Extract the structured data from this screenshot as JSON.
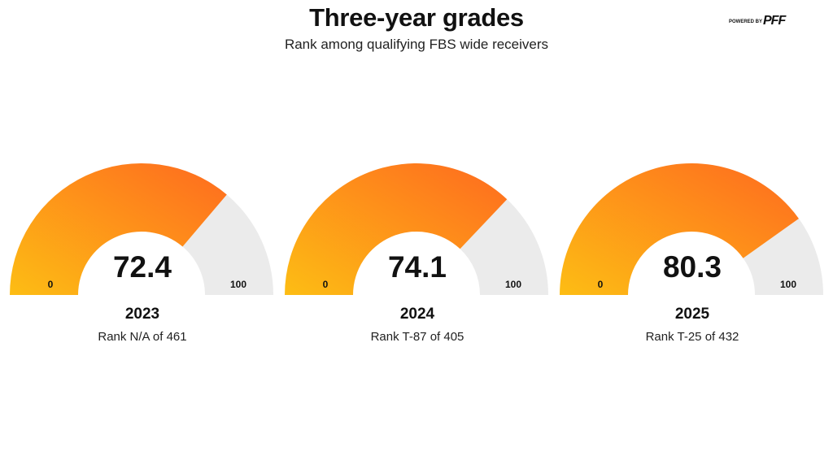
{
  "header": {
    "title": "Three-year grades",
    "subtitle": "Rank among qualifying FBS wide receivers"
  },
  "brand": {
    "powered_by": "POWERED BY",
    "logo_text": "PFF"
  },
  "colors": {
    "gradient_start": "#FDBD14",
    "gradient_end": "#FE6A1F",
    "track": "#EBEBEB",
    "text": "#111111"
  },
  "chart_data": {
    "type": "gauge",
    "title": "Three-year grades",
    "subtitle": "Rank among qualifying FBS wide receivers",
    "range": [
      0,
      100
    ],
    "min_label": "0",
    "max_label": "100",
    "gauges": [
      {
        "year": "2023",
        "value": 72.4,
        "value_label": "72.4",
        "rank_label": "Rank N/A of 461"
      },
      {
        "year": "2024",
        "value": 74.1,
        "value_label": "74.1",
        "rank_label": "Rank T-87 of 405"
      },
      {
        "year": "2025",
        "value": 80.3,
        "value_label": "80.3",
        "rank_label": "Rank T-25 of 432"
      }
    ]
  }
}
